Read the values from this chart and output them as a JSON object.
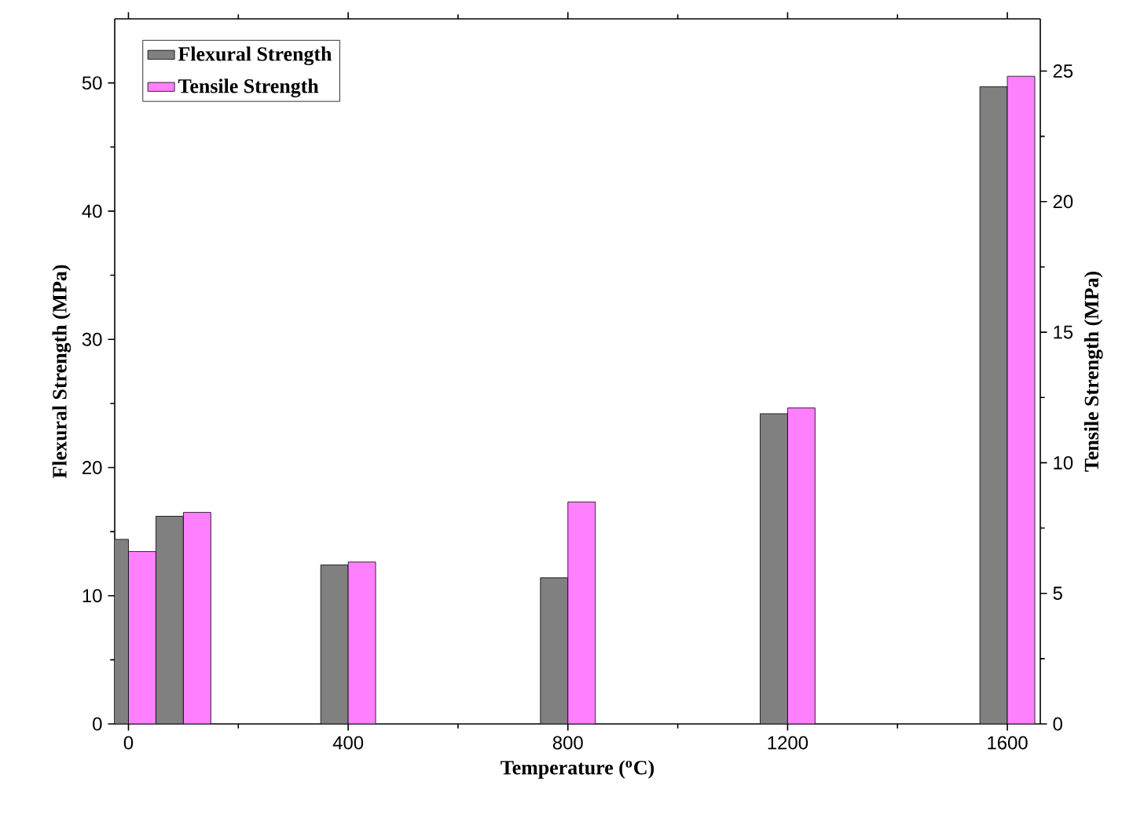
{
  "chart_data": {
    "type": "bar",
    "xlabel": "Temperature ($^{o}$C)",
    "ylabel": "Flexural Strength (MPa)",
    "y2label": "Tensile Strength (MPa)",
    "x": [
      0,
      100,
      400,
      800,
      1200,
      1600
    ],
    "series": [
      {
        "name": "Flexural Strength",
        "color": "#808080",
        "values": [
          14.4,
          16.2,
          12.4,
          11.4,
          24.2,
          49.7
        ]
      },
      {
        "name": "Tensile Strength",
        "color": "#ff80ff",
        "axis": "y2",
        "values": [
          6.6,
          8.1,
          6.2,
          8.5,
          12.1,
          24.8
        ]
      }
    ],
    "xlim": [
      -25,
      1660
    ],
    "xticks": [
      0,
      400,
      800,
      1200,
      1600
    ],
    "ylim": [
      0,
      55
    ],
    "yticks": [
      0,
      10,
      20,
      30,
      40,
      50
    ],
    "y2lim": [
      0,
      27
    ],
    "y2ticks": [
      0,
      5,
      10,
      15,
      20,
      25
    ],
    "legend": "top left",
    "grid": false
  }
}
